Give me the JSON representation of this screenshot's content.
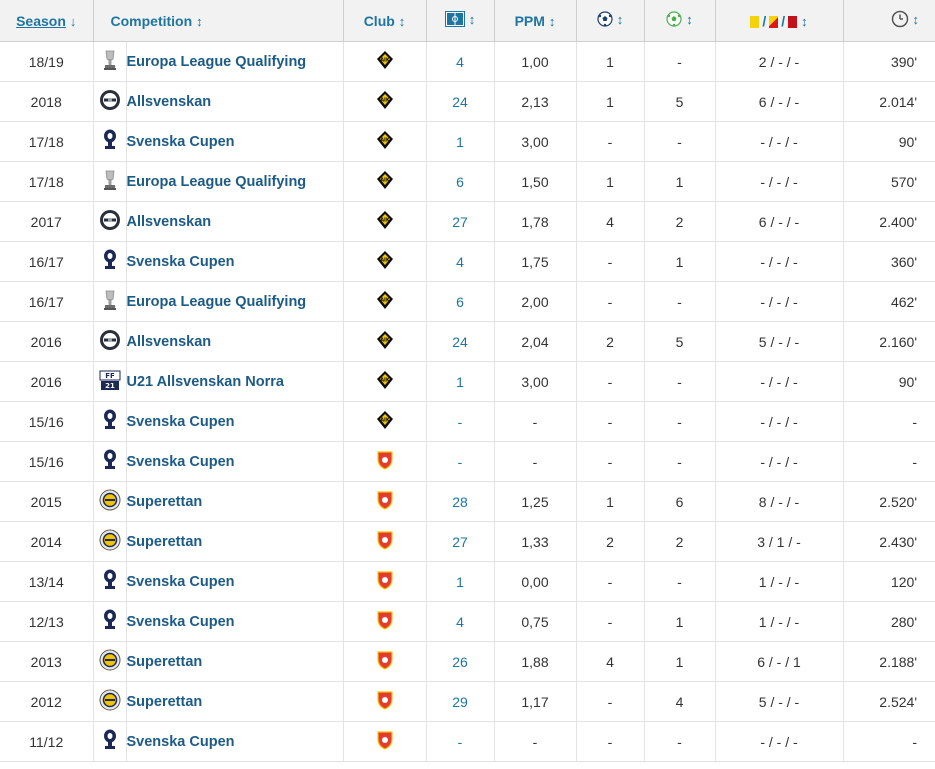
{
  "headers": {
    "season": "Season",
    "season_sort": "↓",
    "competition": "Competition",
    "club": "Club",
    "ppm": "PPM",
    "sort": "↕",
    "cards_sep": "/"
  },
  "rows": [
    {
      "season": "18/19",
      "comp_icon": "europa-league-icon",
      "competition": "Europa League Qualifying",
      "club_icon": "aik-crest-icon",
      "apps": "4",
      "ppm": "1,00",
      "goals": "1",
      "assists": "-",
      "cards": "2 / - / -",
      "minutes": "390'"
    },
    {
      "season": "2018",
      "comp_icon": "allsvenskan-icon",
      "competition": "Allsvenskan",
      "club_icon": "aik-crest-icon",
      "apps": "24",
      "ppm": "2,13",
      "goals": "1",
      "assists": "5",
      "cards": "6 / - / -",
      "minutes": "2.014'"
    },
    {
      "season": "17/18",
      "comp_icon": "svenska-cupen-icon",
      "competition": "Svenska Cupen",
      "club_icon": "aik-crest-icon",
      "apps": "1",
      "ppm": "3,00",
      "goals": "-",
      "assists": "-",
      "cards": "- / - / -",
      "minutes": "90'"
    },
    {
      "season": "17/18",
      "comp_icon": "europa-league-icon",
      "competition": "Europa League Qualifying",
      "club_icon": "aik-crest-icon",
      "apps": "6",
      "ppm": "1,50",
      "goals": "1",
      "assists": "1",
      "cards": "- / - / -",
      "minutes": "570'"
    },
    {
      "season": "2017",
      "comp_icon": "allsvenskan-icon",
      "competition": "Allsvenskan",
      "club_icon": "aik-crest-icon",
      "apps": "27",
      "ppm": "1,78",
      "goals": "4",
      "assists": "2",
      "cards": "6 / - / -",
      "minutes": "2.400'"
    },
    {
      "season": "16/17",
      "comp_icon": "svenska-cupen-icon",
      "competition": "Svenska Cupen",
      "club_icon": "aik-crest-icon",
      "apps": "4",
      "ppm": "1,75",
      "goals": "-",
      "assists": "1",
      "cards": "- / - / -",
      "minutes": "360'"
    },
    {
      "season": "16/17",
      "comp_icon": "europa-league-icon",
      "competition": "Europa League Qualifying",
      "club_icon": "aik-crest-icon",
      "apps": "6",
      "ppm": "2,00",
      "goals": "-",
      "assists": "-",
      "cards": "- / - / -",
      "minutes": "462'"
    },
    {
      "season": "2016",
      "comp_icon": "allsvenskan-icon",
      "competition": "Allsvenskan",
      "club_icon": "aik-crest-icon",
      "apps": "24",
      "ppm": "2,04",
      "goals": "2",
      "assists": "5",
      "cards": "5 / - / -",
      "minutes": "2.160'"
    },
    {
      "season": "2016",
      "comp_icon": "u21-allsvenskan-icon",
      "competition": "U21 Allsvenskan Norra",
      "club_icon": "aik-crest-icon",
      "apps": "1",
      "ppm": "3,00",
      "goals": "-",
      "assists": "-",
      "cards": "- / - / -",
      "minutes": "90'"
    },
    {
      "season": "15/16",
      "comp_icon": "svenska-cupen-icon",
      "competition": "Svenska Cupen",
      "club_icon": "aik-crest-icon",
      "apps": "-",
      "ppm": "-",
      "goals": "-",
      "assists": "-",
      "cards": "- / - / -",
      "minutes": "-"
    },
    {
      "season": "15/16",
      "comp_icon": "svenska-cupen-icon",
      "competition": "Svenska Cupen",
      "club_icon": "red-shield-crest-icon",
      "apps": "-",
      "ppm": "-",
      "goals": "-",
      "assists": "-",
      "cards": "- / - / -",
      "minutes": "-"
    },
    {
      "season": "2015",
      "comp_icon": "superettan-icon",
      "competition": "Superettan",
      "club_icon": "red-shield-crest-icon",
      "apps": "28",
      "ppm": "1,25",
      "goals": "1",
      "assists": "6",
      "cards": "8 / - / -",
      "minutes": "2.520'"
    },
    {
      "season": "2014",
      "comp_icon": "superettan-icon",
      "competition": "Superettan",
      "club_icon": "red-shield-crest-icon",
      "apps": "27",
      "ppm": "1,33",
      "goals": "2",
      "assists": "2",
      "cards": "3 / 1 / -",
      "minutes": "2.430'"
    },
    {
      "season": "13/14",
      "comp_icon": "svenska-cupen-icon",
      "competition": "Svenska Cupen",
      "club_icon": "red-shield-crest-icon",
      "apps": "1",
      "ppm": "0,00",
      "goals": "-",
      "assists": "-",
      "cards": "1 / - / -",
      "minutes": "120'"
    },
    {
      "season": "12/13",
      "comp_icon": "svenska-cupen-icon",
      "competition": "Svenska Cupen",
      "club_icon": "red-shield-crest-icon",
      "apps": "4",
      "ppm": "0,75",
      "goals": "-",
      "assists": "1",
      "cards": "1 / - / -",
      "minutes": "280'"
    },
    {
      "season": "2013",
      "comp_icon": "superettan-icon",
      "competition": "Superettan",
      "club_icon": "red-shield-crest-icon",
      "apps": "26",
      "ppm": "1,88",
      "goals": "4",
      "assists": "1",
      "cards": "6 / - / 1",
      "minutes": "2.188'"
    },
    {
      "season": "2012",
      "comp_icon": "superettan-icon",
      "competition": "Superettan",
      "club_icon": "red-shield-crest-icon",
      "apps": "29",
      "ppm": "1,17",
      "goals": "-",
      "assists": "4",
      "cards": "5 / - / -",
      "minutes": "2.524'"
    },
    {
      "season": "11/12",
      "comp_icon": "svenska-cupen-icon",
      "competition": "Svenska Cupen",
      "club_icon": "red-shield-crest-icon",
      "apps": "-",
      "ppm": "-",
      "goals": "-",
      "assists": "-",
      "cards": "- / - / -",
      "minutes": "-"
    }
  ]
}
